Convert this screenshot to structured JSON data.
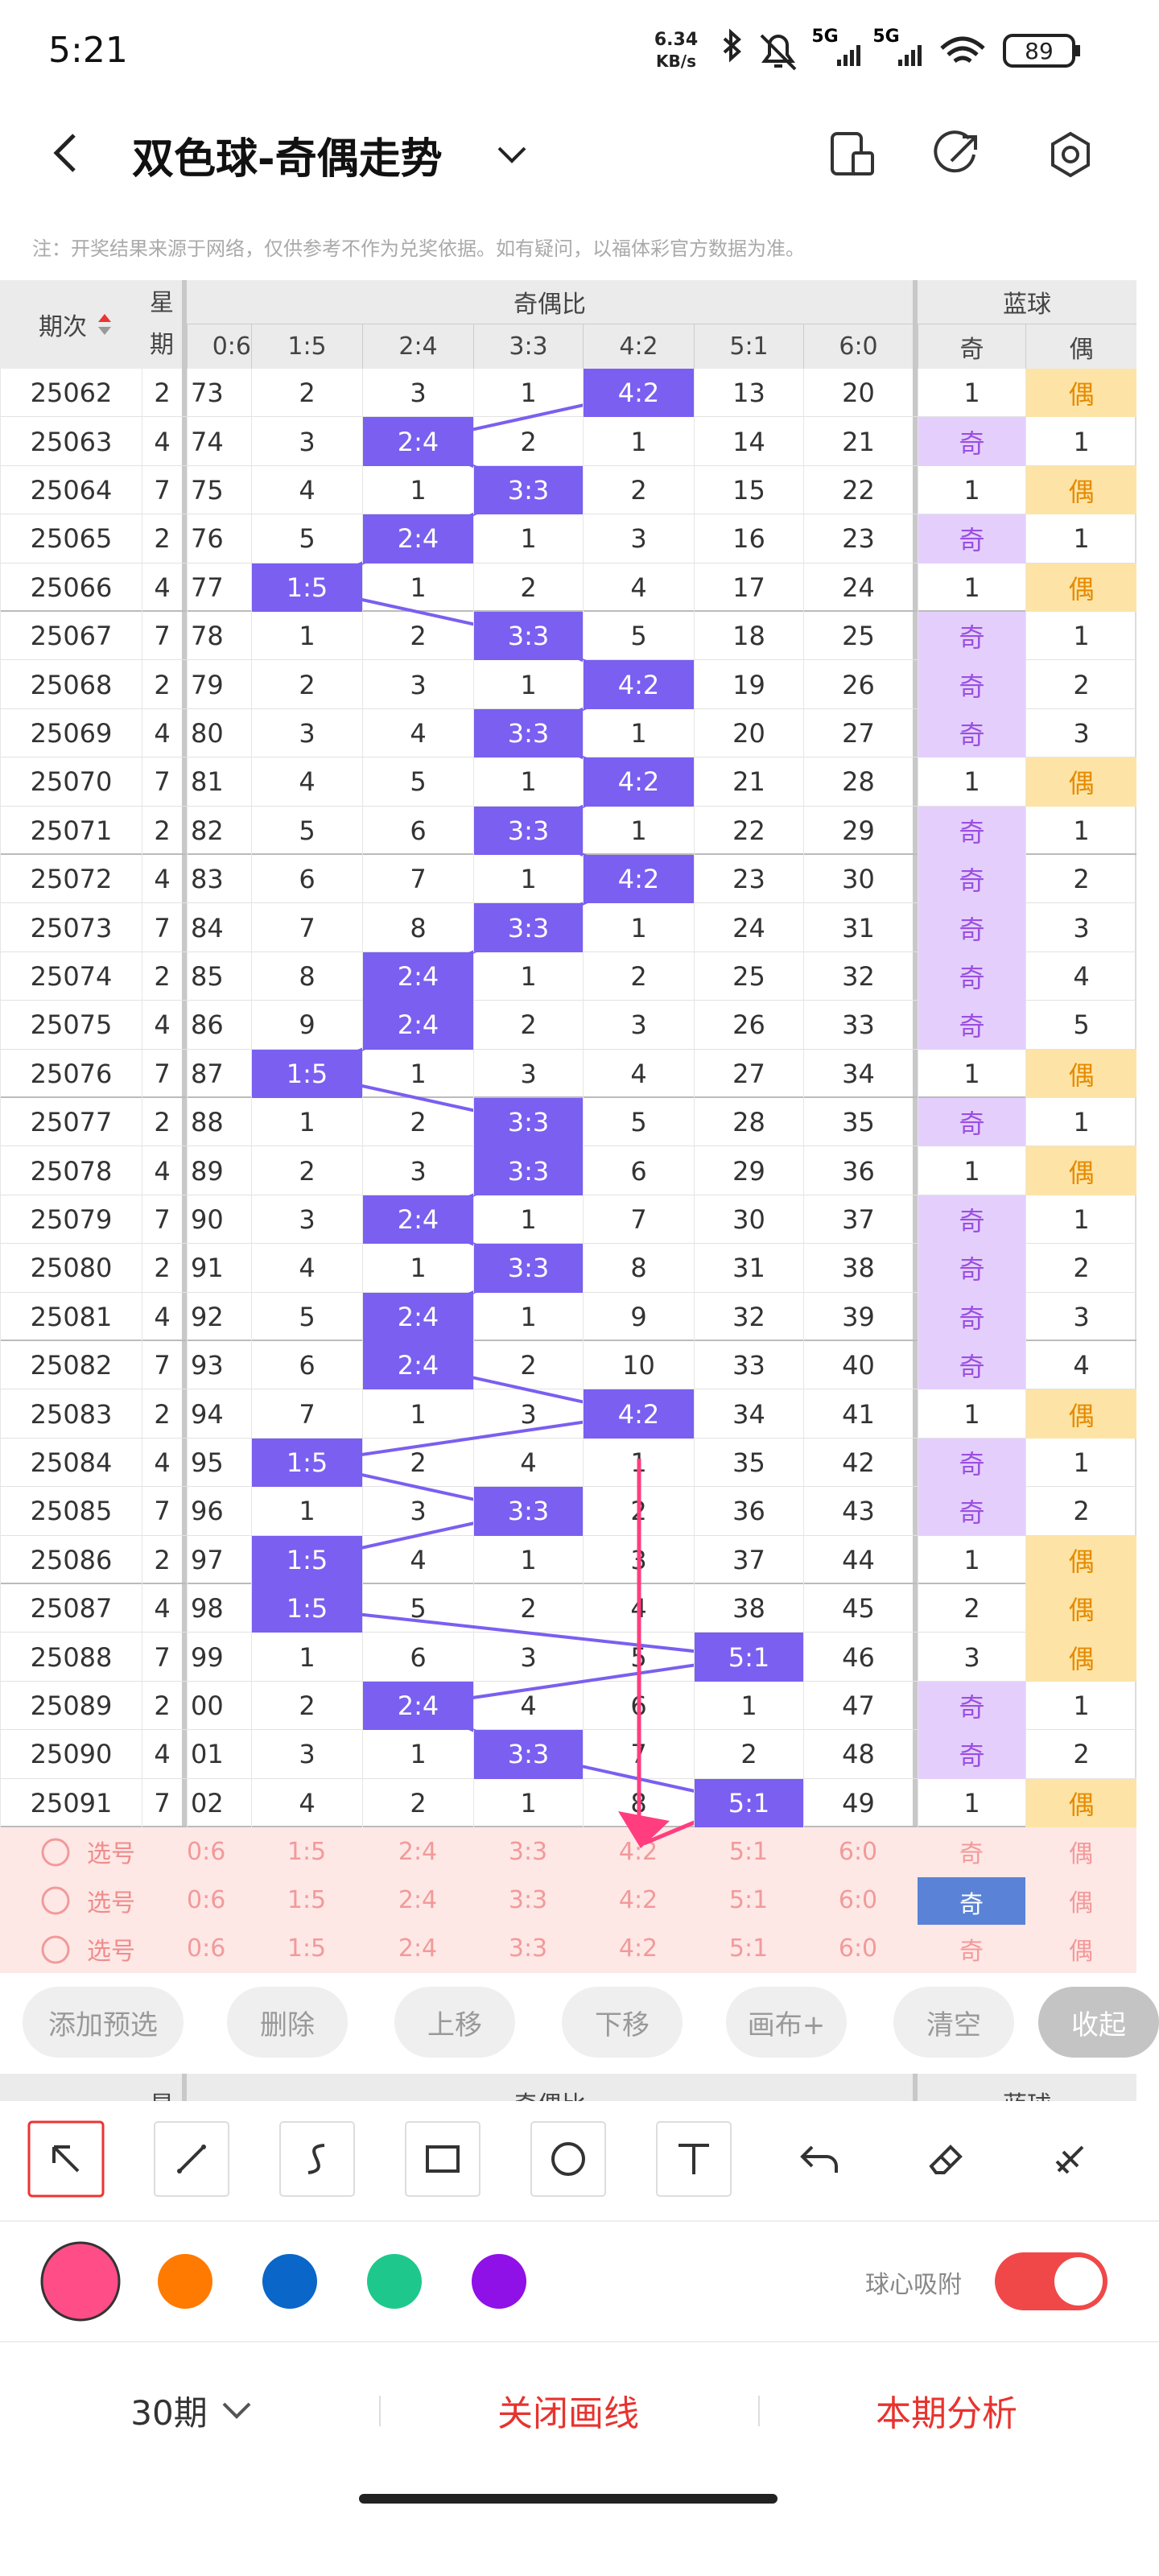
{
  "status_bar": {
    "time": "5:21",
    "net_speed": "6.34",
    "net_unit": "KB/s",
    "network": [
      "5G",
      "5G"
    ],
    "battery": "89"
  },
  "header": {
    "title": "双色球-奇偶走势"
  },
  "note": "注：开奖结果来源于网络，仅供参考不作为兑奖依据。如有疑问，以福体彩官方数据为准。",
  "table": {
    "col_period": "期次",
    "col_weekday": "星期",
    "group_ratio": "奇偶比",
    "group_blue": "蓝球",
    "ratio_columns": [
      "0:6",
      "1:5",
      "2:4",
      "3:3",
      "4:2",
      "5:1",
      "6:0"
    ],
    "blue_columns": [
      "奇",
      "偶"
    ],
    "rows": [
      [
        "25062",
        "2",
        "73",
        "2",
        "3",
        "1",
        "4:2",
        "13",
        "20",
        "1",
        "偶"
      ],
      [
        "25063",
        "4",
        "74",
        "3",
        "2:4",
        "2",
        "1",
        "14",
        "21",
        "奇",
        "1"
      ],
      [
        "25064",
        "7",
        "75",
        "4",
        "1",
        "3:3",
        "2",
        "15",
        "22",
        "1",
        "偶"
      ],
      [
        "25065",
        "2",
        "76",
        "5",
        "2:4",
        "1",
        "3",
        "16",
        "23",
        "奇",
        "1"
      ],
      [
        "25066",
        "4",
        "77",
        "1:5",
        "1",
        "2",
        "4",
        "17",
        "24",
        "1",
        "偶"
      ],
      [
        "25067",
        "7",
        "78",
        "1",
        "2",
        "3:3",
        "5",
        "18",
        "25",
        "奇",
        "1"
      ],
      [
        "25068",
        "2",
        "79",
        "2",
        "3",
        "1",
        "4:2",
        "19",
        "26",
        "奇",
        "2"
      ],
      [
        "25069",
        "4",
        "80",
        "3",
        "4",
        "3:3",
        "1",
        "20",
        "27",
        "奇",
        "3"
      ],
      [
        "25070",
        "7",
        "81",
        "4",
        "5",
        "1",
        "4:2",
        "21",
        "28",
        "1",
        "偶"
      ],
      [
        "25071",
        "2",
        "82",
        "5",
        "6",
        "3:3",
        "1",
        "22",
        "29",
        "奇",
        "1"
      ],
      [
        "25072",
        "4",
        "83",
        "6",
        "7",
        "1",
        "4:2",
        "23",
        "30",
        "奇",
        "2"
      ],
      [
        "25073",
        "7",
        "84",
        "7",
        "8",
        "3:3",
        "1",
        "24",
        "31",
        "奇",
        "3"
      ],
      [
        "25074",
        "2",
        "85",
        "8",
        "2:4",
        "1",
        "2",
        "25",
        "32",
        "奇",
        "4"
      ],
      [
        "25075",
        "4",
        "86",
        "9",
        "2:4",
        "2",
        "3",
        "26",
        "33",
        "奇",
        "5"
      ],
      [
        "25076",
        "7",
        "87",
        "1:5",
        "1",
        "3",
        "4",
        "27",
        "34",
        "1",
        "偶"
      ],
      [
        "25077",
        "2",
        "88",
        "1",
        "2",
        "3:3",
        "5",
        "28",
        "35",
        "奇",
        "1"
      ],
      [
        "25078",
        "4",
        "89",
        "2",
        "3",
        "3:3",
        "6",
        "29",
        "36",
        "1",
        "偶"
      ],
      [
        "25079",
        "7",
        "90",
        "3",
        "2:4",
        "1",
        "7",
        "30",
        "37",
        "奇",
        "1"
      ],
      [
        "25080",
        "2",
        "91",
        "4",
        "1",
        "3:3",
        "8",
        "31",
        "38",
        "奇",
        "2"
      ],
      [
        "25081",
        "4",
        "92",
        "5",
        "2:4",
        "1",
        "9",
        "32",
        "39",
        "奇",
        "3"
      ],
      [
        "25082",
        "7",
        "93",
        "6",
        "2:4",
        "2",
        "10",
        "33",
        "40",
        "奇",
        "4"
      ],
      [
        "25083",
        "2",
        "94",
        "7",
        "1",
        "3",
        "4:2",
        "34",
        "41",
        "1",
        "偶"
      ],
      [
        "25084",
        "4",
        "95",
        "1:5",
        "2",
        "4",
        "1",
        "35",
        "42",
        "奇",
        "1"
      ],
      [
        "25085",
        "7",
        "96",
        "1",
        "3",
        "3:3",
        "2",
        "36",
        "43",
        "奇",
        "2"
      ],
      [
        "25086",
        "2",
        "97",
        "1:5",
        "4",
        "1",
        "3",
        "37",
        "44",
        "1",
        "偶"
      ],
      [
        "25087",
        "4",
        "98",
        "1:5",
        "5",
        "2",
        "4",
        "38",
        "45",
        "2",
        "偶"
      ],
      [
        "25088",
        "7",
        "99",
        "1",
        "6",
        "3",
        "5",
        "5:1",
        "46",
        "3",
        "偶"
      ],
      [
        "25089",
        "2",
        "00",
        "2",
        "2:4",
        "4",
        "6",
        "1",
        "47",
        "奇",
        "1"
      ],
      [
        "25090",
        "4",
        "01",
        "3",
        "1",
        "3:3",
        "7",
        "2",
        "48",
        "奇",
        "2"
      ],
      [
        "25091",
        "7",
        "02",
        "4",
        "2",
        "1",
        "8",
        "5:1",
        "49",
        "1",
        "偶"
      ]
    ],
    "pick_rows": [
      {
        "label": "选号",
        "cells": [
          "0:6",
          "1:5",
          "2:4",
          "3:3",
          "4:2",
          "5:1",
          "6:0",
          "奇",
          "偶"
        ]
      },
      {
        "label": "选号",
        "cells": [
          "0:6",
          "1:5",
          "2:4",
          "3:3",
          "4:2",
          "5:1",
          "6:0",
          "奇",
          "偶"
        ],
        "selected_index": 7
      },
      {
        "label": "选号",
        "cells": [
          "0:6",
          "1:5",
          "2:4",
          "3:3",
          "4:2",
          "5:1",
          "6:0",
          "奇",
          "偶"
        ]
      }
    ]
  },
  "actions": [
    "添加预选",
    "删除",
    "上移",
    "下移",
    "画布+",
    "清空",
    "收起"
  ],
  "sticky_header": {
    "weekday": "星",
    "group_ratio": "奇偶比",
    "group_blue": "蓝球"
  },
  "snap_label": "球心吸附",
  "bottom_bar": {
    "period_select": "30期",
    "close_lines": "关闭画线",
    "analysis": "本期分析"
  }
}
